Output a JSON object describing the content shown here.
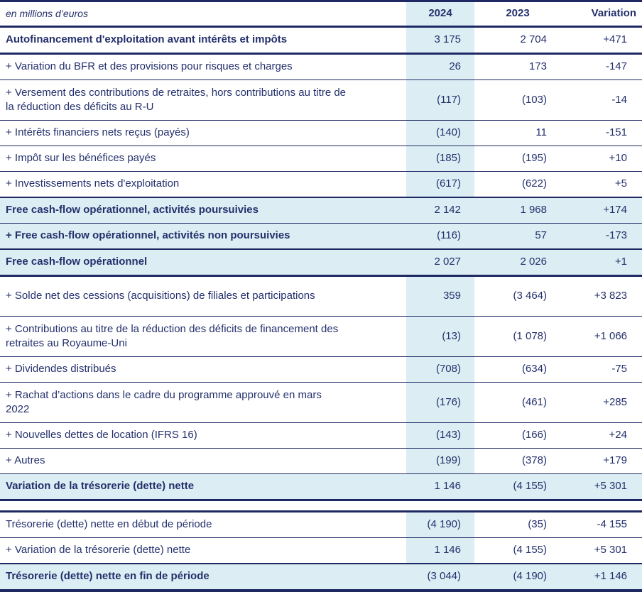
{
  "colors": {
    "text_navy": "#24306c",
    "line_navy": "#1e2963",
    "column_highlight_blue": "#dceef4",
    "row_highlight_blue": "#dceef4",
    "background": "#ffffff"
  },
  "table": {
    "unit_label": "en millions d’euros",
    "columns": [
      "2024",
      "2023",
      "Variation"
    ],
    "rows": [
      {
        "label": "Autofinancement d'exploitation avant intérêts et impôts",
        "y2024": "3 175",
        "y2023": "2 704",
        "variation": "+471",
        "bold": true,
        "highlight": false,
        "border": "thick"
      },
      {
        "label": "+ Variation du BFR et des provisions pour risques et charges",
        "y2024": "26",
        "y2023": "173",
        "variation": "-147",
        "border": "thin"
      },
      {
        "label": "+ Versement des contributions de retraites, hors contributions au titre de\nla réduction des déficits au R-U",
        "y2024": "(117)",
        "y2023": "(103)",
        "variation": "-14",
        "border": "thin",
        "tall": true
      },
      {
        "label": "+ Intérêts financiers nets reçus (payés)",
        "y2024": "(140)",
        "y2023": "11",
        "variation": "-151",
        "border": "thin"
      },
      {
        "label": "+ Impôt sur les bénéfices payés",
        "y2024": "(185)",
        "y2023": "(195)",
        "variation": "+10",
        "border": "thin"
      },
      {
        "label": "+ Investissements nets d'exploitation",
        "y2024": "(617)",
        "y2023": "(622)",
        "variation": "+5",
        "border": "med"
      },
      {
        "label": "Free cash-flow opérationnel, activités poursuivies",
        "y2024": "2 142",
        "y2023": "1 968",
        "variation": "+174",
        "bold": true,
        "highlight": true,
        "border": "thin"
      },
      {
        "label": "+ Free cash-flow opérationnel, activités non poursuivies",
        "y2024": "(116)",
        "y2023": "57",
        "variation": "-173",
        "bold": true,
        "highlight": true,
        "border": "med"
      },
      {
        "label": "Free cash-flow opérationnel",
        "y2024": "2 027",
        "y2023": "2 026",
        "variation": "+1",
        "bold": true,
        "highlight": true,
        "border": "thick"
      },
      {
        "label": "+ Solde net des cessions (acquisitions) de filiales et participations",
        "y2024": "359",
        "y2023": "(3 464)",
        "variation": "+3 823",
        "border": "thin",
        "xtall": true
      },
      {
        "label": "+ Contributions au titre de la réduction des déficits de financement des\nretraites au Royaume-Uni",
        "y2024": "(13)",
        "y2023": "(1 078)",
        "variation": "+1 066",
        "border": "thin",
        "tall": true
      },
      {
        "label": "+ Dividendes distribués",
        "y2024": "(708)",
        "y2023": "(634)",
        "variation": "-75",
        "border": "thin"
      },
      {
        "label": "+ Rachat d’actions dans le cadre du programme approuvé en mars\n2022",
        "y2024": "(176)",
        "y2023": "(461)",
        "variation": "+285",
        "border": "thin",
        "tall": true
      },
      {
        "label": "+ Nouvelles dettes de location (IFRS 16)",
        "y2024": "(143)",
        "y2023": "(166)",
        "variation": "+24",
        "border": "thin"
      },
      {
        "label": "+ Autres",
        "y2024": "(199)",
        "y2023": "(378)",
        "variation": "+179",
        "border": "thin"
      },
      {
        "label": "Variation de la trésorerie (dette) nette",
        "y2024": "1 146",
        "y2023": "(4 155)",
        "variation": "+5 301",
        "bold": true,
        "highlight": true,
        "border": "thick"
      },
      {
        "type": "spacer"
      },
      {
        "label": "Trésorerie (dette) nette en début de période",
        "y2024": "(4 190)",
        "y2023": "(35)",
        "variation": "-4 155",
        "border": "thin"
      },
      {
        "label": "+ Variation de la trésorerie (dette) nette",
        "y2024": "1 146",
        "y2023": "(4 155)",
        "variation": "+5 301",
        "border": "med"
      },
      {
        "label": "Trésorerie (dette) nette en fin de période",
        "y2024": "(3 044)",
        "y2023": "(4 190)",
        "variation": "+1 146",
        "bold": true,
        "highlight": true,
        "border": "none"
      }
    ]
  }
}
